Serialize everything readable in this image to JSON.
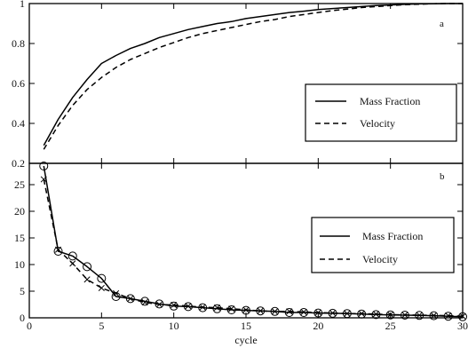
{
  "chart_data": [
    {
      "type": "line",
      "panel_label": "a",
      "xlim": [
        0,
        30
      ],
      "ylim": [
        0.2,
        1.0
      ],
      "x_ticks": [
        0,
        5,
        10,
        15,
        20,
        25,
        30
      ],
      "y_ticks": [
        0.2,
        0.4,
        0.6,
        0.8,
        1
      ],
      "y_tick_labels": [
        "0.2",
        "0.4",
        "0.6",
        "0.8",
        "1"
      ],
      "grid": false,
      "legend_position": "center-right",
      "series": [
        {
          "name": "Mass Fraction",
          "style": "solid",
          "x": [
            1,
            2,
            3,
            4,
            5,
            6,
            7,
            8,
            9,
            10,
            11,
            12,
            13,
            14,
            15,
            16,
            17,
            18,
            19,
            20,
            21,
            22,
            23,
            24,
            25,
            26,
            27,
            28,
            29,
            30
          ],
          "y": [
            0.29,
            0.42,
            0.53,
            0.62,
            0.7,
            0.74,
            0.775,
            0.8,
            0.83,
            0.85,
            0.87,
            0.885,
            0.9,
            0.91,
            0.925,
            0.935,
            0.945,
            0.955,
            0.962,
            0.97,
            0.975,
            0.98,
            0.985,
            0.99,
            0.993,
            0.996,
            0.998,
            0.999,
            1.0,
            1.0
          ]
        },
        {
          "name": "Velocity",
          "style": "dashed",
          "x": [
            1,
            2,
            3,
            4,
            5,
            6,
            7,
            8,
            9,
            10,
            11,
            12,
            13,
            14,
            15,
            16,
            17,
            18,
            19,
            20,
            21,
            22,
            23,
            24,
            25,
            26,
            27,
            28,
            29,
            30
          ],
          "y": [
            0.27,
            0.39,
            0.49,
            0.57,
            0.63,
            0.68,
            0.72,
            0.75,
            0.78,
            0.805,
            0.83,
            0.85,
            0.865,
            0.88,
            0.895,
            0.91,
            0.92,
            0.935,
            0.945,
            0.955,
            0.965,
            0.972,
            0.98,
            0.985,
            0.99,
            0.994,
            0.997,
            0.999,
            1.0,
            1.0
          ]
        }
      ]
    },
    {
      "type": "line",
      "panel_label": "b",
      "xlabel": "cycle",
      "xlim": [
        0,
        30
      ],
      "ylim": [
        0,
        29
      ],
      "x_ticks": [
        0,
        5,
        10,
        15,
        20,
        25,
        30
      ],
      "y_ticks": [
        0,
        5,
        10,
        15,
        20,
        25
      ],
      "y_tick_labels": [
        "0",
        "5",
        "10",
        "15",
        "20",
        "25"
      ],
      "grid": false,
      "legend_position": "center-right",
      "series": [
        {
          "name": "Mass Fraction",
          "style": "solid",
          "marker": "circle",
          "x": [
            1,
            2,
            3,
            4,
            5,
            6,
            7,
            8,
            9,
            10,
            11,
            12,
            13,
            14,
            15,
            16,
            17,
            18,
            19,
            20,
            21,
            22,
            23,
            24,
            25,
            26,
            27,
            28,
            29,
            30
          ],
          "y": [
            28.5,
            12.5,
            11.6,
            9.6,
            7.4,
            4.0,
            3.6,
            3.1,
            2.6,
            2.2,
            2.1,
            1.9,
            1.7,
            1.5,
            1.4,
            1.3,
            1.2,
            1.0,
            1.0,
            0.9,
            0.85,
            0.8,
            0.7,
            0.6,
            0.55,
            0.5,
            0.45,
            0.4,
            0.3,
            0.2
          ]
        },
        {
          "name": "Velocity",
          "style": "dashed",
          "marker": "x",
          "x": [
            1,
            2,
            3,
            4,
            5,
            6,
            7,
            8,
            9,
            10,
            11,
            12,
            13,
            14,
            15,
            16,
            17,
            18,
            19,
            20,
            21,
            22,
            23,
            24,
            25,
            26,
            27,
            28,
            29,
            30
          ],
          "y": [
            26.0,
            12.8,
            10.2,
            7.2,
            5.6,
            4.6,
            3.6,
            2.9,
            2.5,
            2.4,
            2.2,
            2.0,
            1.9,
            1.7,
            1.5,
            1.3,
            1.2,
            1.2,
            1.1,
            1.0,
            0.9,
            0.8,
            0.8,
            0.7,
            0.6,
            0.55,
            0.5,
            0.45,
            0.4,
            0.3
          ]
        }
      ]
    }
  ]
}
